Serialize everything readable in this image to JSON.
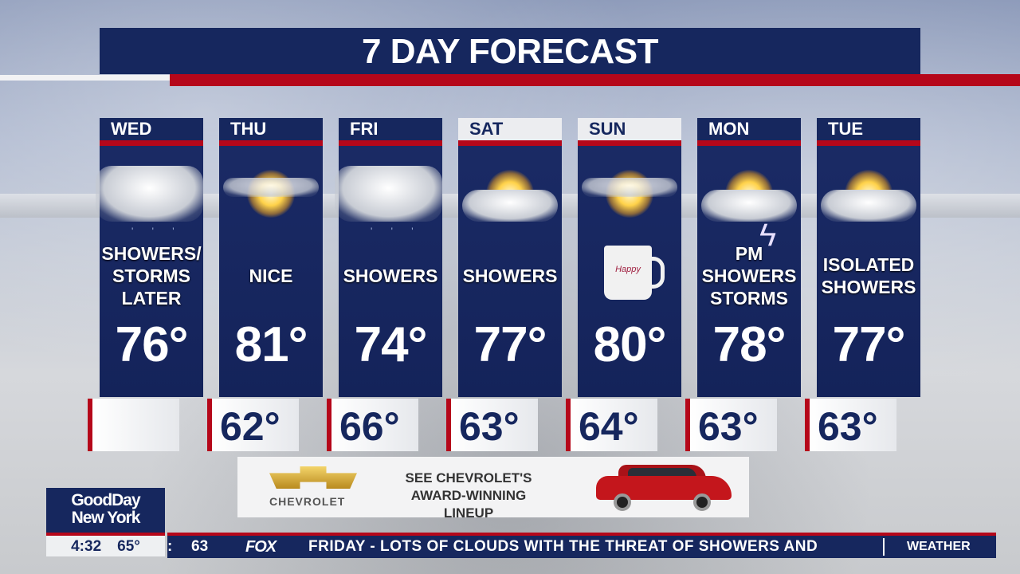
{
  "title": "7 DAY FORECAST",
  "days": [
    {
      "day": "WED",
      "desc": [
        "SHOWERS/",
        "STORMS",
        "LATER"
      ],
      "high": "76°",
      "low": "",
      "icon": "cloudy-showers-icon",
      "highlight": false
    },
    {
      "day": "THU",
      "desc": [
        "NICE"
      ],
      "high": "81°",
      "low": "62°",
      "icon": "sunny-icon",
      "highlight": false
    },
    {
      "day": "FRI",
      "desc": [
        "SHOWERS"
      ],
      "high": "74°",
      "low": "66°",
      "icon": "cloudy-showers-icon",
      "highlight": false
    },
    {
      "day": "SAT",
      "desc": [
        "SHOWERS"
      ],
      "high": "77°",
      "low": "63°",
      "icon": "partly-cloudy-icon",
      "highlight": true
    },
    {
      "day": "SUN",
      "desc": [],
      "high": "80°",
      "low": "64°",
      "icon": "sunny-mug-icon",
      "highlight": true
    },
    {
      "day": "MON",
      "desc": [
        "PM",
        "SHOWERS",
        "STORMS"
      ],
      "high": "78°",
      "low": "63°",
      "icon": "thunderstorm-icon",
      "highlight": false
    },
    {
      "day": "TUE",
      "desc": [
        "ISOLATED",
        "SHOWERS"
      ],
      "high": "77°",
      "low": "63°",
      "icon": "partly-cloudy-icon",
      "highlight": false
    }
  ],
  "mug_text": "Happy",
  "ad": {
    "brand": "CHEVROLET",
    "text": [
      "SEE CHEVROLET'S",
      "AWARD-WINNING LINEUP"
    ]
  },
  "show": {
    "name": [
      "GoodDay",
      "New York"
    ],
    "time": "4:32",
    "temp": "65°"
  },
  "ticker": {
    "prefix": ":",
    "value": "63",
    "network": "FOX",
    "text": "FRIDAY - LOTS OF CLOUDS WITH THE THREAT OF SHOWERS AND",
    "section": "WEATHER"
  },
  "colors": {
    "navy": "#16275e",
    "red": "#b5071a"
  }
}
